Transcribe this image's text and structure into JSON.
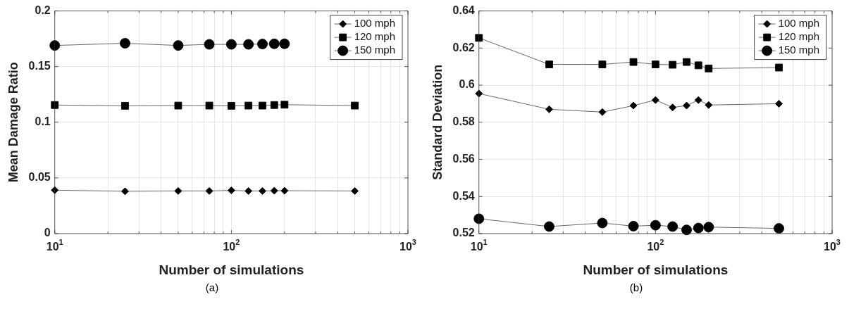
{
  "chart_data": [
    {
      "type": "line",
      "xlabel": "Number of simulations",
      "ylabel": "Mean Damage Ratio",
      "log": "x",
      "grid": true,
      "legend": "top right",
      "line_style": "solid",
      "x": [
        10,
        25,
        50,
        75,
        100,
        125,
        150,
        175,
        200,
        500
      ],
      "xlim": [
        10,
        1000
      ],
      "xticks": [
        {
          "value": 10,
          "label": "10$^{1}$"
        },
        {
          "value": 20,
          "label": null
        },
        {
          "value": 30,
          "label": null
        },
        {
          "value": 40,
          "label": null
        },
        {
          "value": 50,
          "label": null
        },
        {
          "value": 60,
          "label": null
        },
        {
          "value": 70,
          "label": null
        },
        {
          "value": 80,
          "label": null
        },
        {
          "value": 90,
          "label": null
        },
        {
          "value": 100,
          "label": "10$^{2}$"
        },
        {
          "value": 200,
          "label": null
        },
        {
          "value": 300,
          "label": null
        },
        {
          "value": 400,
          "label": null
        },
        {
          "value": 500,
          "label": null
        },
        {
          "value": 600,
          "label": null
        },
        {
          "value": 700,
          "label": null
        },
        {
          "value": 800,
          "label": null
        },
        {
          "value": 900,
          "label": null
        },
        {
          "value": 1000,
          "label": "10$^{3}$"
        }
      ],
      "ylim": [
        0,
        0.2
      ],
      "yticks": [
        0,
        0.05,
        0.1,
        0.15,
        0.2
      ],
      "series": [
        {
          "name": "100 mph",
          "color": "#000000",
          "marker": "diamond",
          "values": [
            0.039,
            0.038,
            0.0383,
            0.0383,
            0.0388,
            0.0383,
            0.0383,
            0.0385,
            0.0385,
            0.0383
          ]
        },
        {
          "name": "120 mph",
          "color": "#000000",
          "marker": "square",
          "values": [
            0.1155,
            0.1148,
            0.115,
            0.115,
            0.1148,
            0.115,
            0.115,
            0.1155,
            0.1158,
            0.115
          ]
        },
        {
          "name": "150 mph",
          "color": "#000000",
          "marker": "circle",
          "values": [
            0.169,
            0.171,
            0.169,
            0.17,
            0.17,
            0.17,
            0.1703,
            0.1705,
            0.1705,
            null
          ]
        }
      ],
      "annotations": [
        "(a)"
      ]
    },
    {
      "type": "line",
      "xlabel": "Number of simulations",
      "ylabel": "Standard Deviation",
      "log": "x",
      "grid": true,
      "legend": "top right",
      "line_style": "solid",
      "x": [
        10,
        25,
        50,
        75,
        100,
        125,
        150,
        175,
        200,
        500
      ],
      "xlim": [
        10,
        1000
      ],
      "xticks": [
        {
          "value": 10,
          "label": "10$^{1}$"
        },
        {
          "value": 20,
          "label": null
        },
        {
          "value": 30,
          "label": null
        },
        {
          "value": 40,
          "label": null
        },
        {
          "value": 50,
          "label": null
        },
        {
          "value": 60,
          "label": null
        },
        {
          "value": 70,
          "label": null
        },
        {
          "value": 80,
          "label": null
        },
        {
          "value": 90,
          "label": null
        },
        {
          "value": 100,
          "label": "10$^{2}$"
        },
        {
          "value": 200,
          "label": null
        },
        {
          "value": 300,
          "label": null
        },
        {
          "value": 400,
          "label": null
        },
        {
          "value": 500,
          "label": null
        },
        {
          "value": 600,
          "label": null
        },
        {
          "value": 700,
          "label": null
        },
        {
          "value": 800,
          "label": null
        },
        {
          "value": 900,
          "label": null
        },
        {
          "value": 1000,
          "label": "10$^{3}$"
        }
      ],
      "ylim": [
        0.52,
        0.64
      ],
      "yticks": [
        0.52,
        0.54,
        0.56,
        0.58,
        0.6,
        0.62,
        0.64
      ],
      "series": [
        {
          "name": "100 mph",
          "color": "#000000",
          "marker": "diamond",
          "values": [
            0.5955,
            0.587,
            0.5855,
            0.589,
            0.592,
            0.588,
            0.589,
            0.592,
            0.5893,
            0.59
          ]
        },
        {
          "name": "120 mph",
          "color": "#000000",
          "marker": "square",
          "values": [
            0.6255,
            0.6112,
            0.6112,
            0.6125,
            0.6112,
            0.611,
            0.6125,
            0.6107,
            0.609,
            0.6095
          ]
        },
        {
          "name": "150 mph",
          "color": "#000000",
          "marker": "circle",
          "values": [
            0.528,
            0.5238,
            0.5257,
            0.524,
            0.5245,
            0.5238,
            0.522,
            0.523,
            0.5235,
            0.5228
          ]
        }
      ],
      "annotations": [
        "(b)"
      ]
    }
  ]
}
